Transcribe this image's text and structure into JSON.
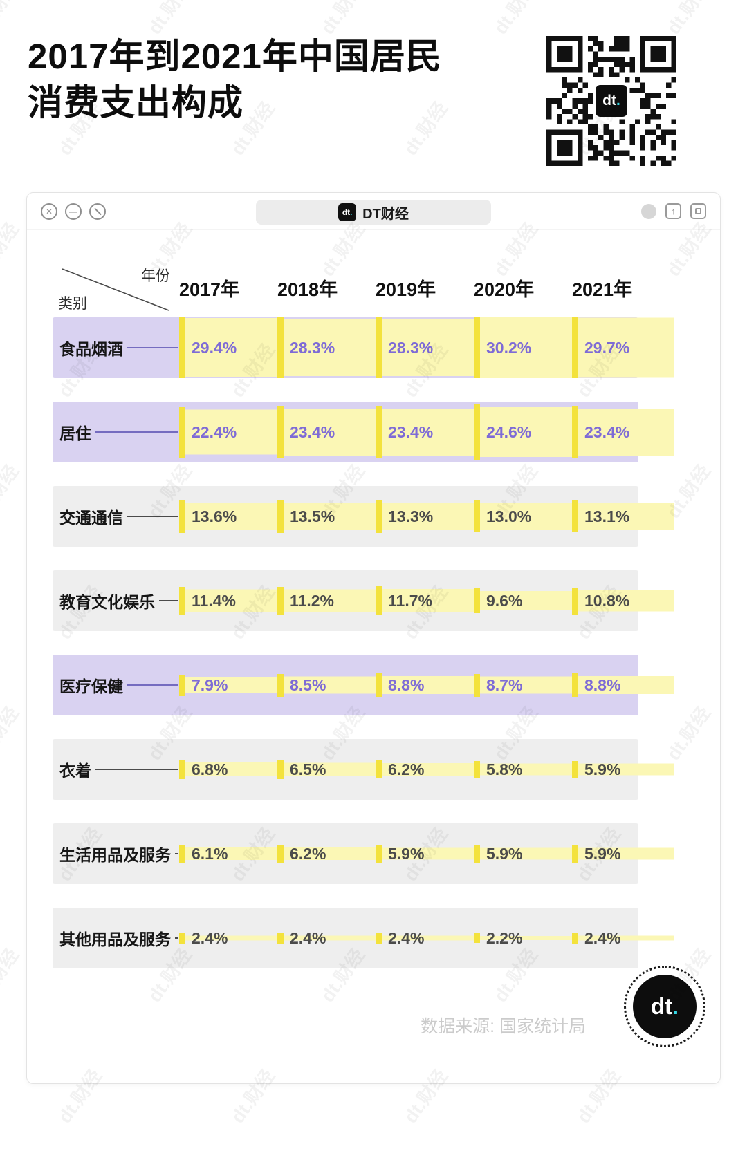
{
  "page": {
    "title_line1": "2017年到2021年中国居民",
    "title_line2": "消费支出构成",
    "watermark": "dt.财经",
    "source": "数据来源: 国家统计局",
    "logo_text": "dt",
    "logo_dot": "."
  },
  "window": {
    "tab_label": "DT财经",
    "controls": {
      "close": "✕",
      "minimize": "—"
    }
  },
  "table": {
    "corner_year": "年份",
    "corner_category": "类别"
  },
  "chart_data": {
    "type": "bar",
    "title": "2017年到2021年中国居民消费支出构成",
    "x": [
      "2017年",
      "2018年",
      "2019年",
      "2020年",
      "2021年"
    ],
    "unit": "%",
    "max_value": 30.2,
    "series": [
      {
        "name": "食品烟酒",
        "highlight": true,
        "values": [
          29.4,
          28.3,
          28.3,
          30.2,
          29.7
        ]
      },
      {
        "name": "居住",
        "highlight": true,
        "values": [
          22.4,
          23.4,
          23.4,
          24.6,
          23.4
        ]
      },
      {
        "name": "交通通信",
        "highlight": false,
        "values": [
          13.6,
          13.5,
          13.3,
          13.0,
          13.1
        ]
      },
      {
        "name": "教育文化娱乐",
        "highlight": false,
        "values": [
          11.4,
          11.2,
          11.7,
          9.6,
          10.8
        ]
      },
      {
        "name": "医疗保健",
        "highlight": true,
        "values": [
          7.9,
          8.5,
          8.8,
          8.7,
          8.8
        ]
      },
      {
        "name": "衣着",
        "highlight": false,
        "values": [
          6.8,
          6.5,
          6.2,
          5.8,
          5.9
        ]
      },
      {
        "name": "生活用品及服务",
        "highlight": false,
        "values": [
          6.1,
          6.2,
          5.9,
          5.9,
          5.9
        ]
      },
      {
        "name": "其他用品及服务",
        "highlight": false,
        "values": [
          2.4,
          2.4,
          2.4,
          2.2,
          2.4
        ]
      }
    ],
    "source": "数据来源: 国家统计局",
    "legend_position": "none",
    "grid": false,
    "colors": {
      "bar_fill": "#FBF7B5",
      "bar_accent": "#F3E23C",
      "row_highlight_bg": "#D9D2F1",
      "row_bg": "#EEEEEE",
      "value_highlight": "#7E6BD6",
      "value_normal": "#4B4B4B",
      "brand_cyan": "#35D6E3"
    }
  }
}
